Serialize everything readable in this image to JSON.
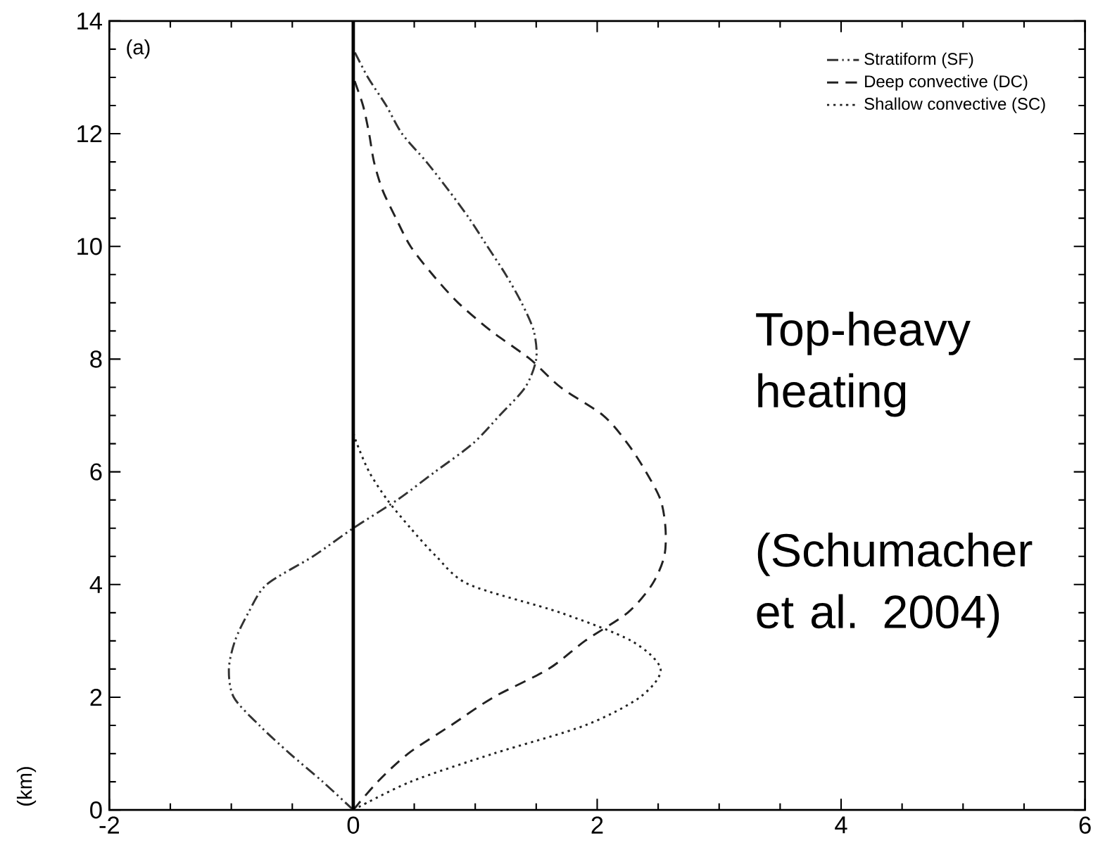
{
  "chart_data": {
    "type": "line",
    "ylabel": "(km)",
    "xlim": [
      -2,
      6
    ],
    "ylim": [
      0,
      14
    ],
    "xticks": [
      -2,
      0,
      2,
      4,
      6
    ],
    "yticks": [
      0,
      2,
      4,
      6,
      8,
      10,
      12,
      14
    ],
    "legend": "top right",
    "grid": false,
    "marker": "none",
    "ref_lines": [
      {
        "axis": "x",
        "value": 0,
        "color": "#000000",
        "line_style": "solid"
      }
    ],
    "annotations": [
      "(a)",
      "Top-heavy heating",
      "(Schumacher et al. 2004)"
    ],
    "series": [
      {
        "name": "Stratiform (SF)",
        "color": "#333333",
        "line_style": "dashdotdotted",
        "x": [
          0,
          -0.25,
          -0.52,
          -0.77,
          -0.98,
          -1.02,
          -0.97,
          -0.86,
          -0.71,
          -0.33,
          0,
          0.36,
          0.67,
          0.98,
          1.2,
          1.41,
          1.5,
          1.48,
          1.38,
          1.25,
          1.1,
          0.95,
          0.78,
          0.6,
          0.4,
          0.27,
          0.12,
          0
        ],
        "values": [
          0,
          0.5,
          1,
          1.5,
          2,
          2.5,
          3,
          3.5,
          4,
          4.5,
          5,
          5.5,
          6,
          6.5,
          7,
          7.5,
          8,
          8.5,
          9,
          9.5,
          10,
          10.5,
          11,
          11.5,
          12,
          12.5,
          13,
          13.5
        ]
      },
      {
        "name": "Deep convective (DC)",
        "color": "#222222",
        "line_style": "dashed",
        "x": [
          0,
          0.2,
          0.45,
          0.8,
          1.15,
          1.6,
          1.9,
          2.25,
          2.45,
          2.55,
          2.56,
          2.52,
          2.4,
          2.25,
          2.05,
          1.7,
          1.45,
          1.13,
          0.86,
          0.65,
          0.47,
          0.35,
          0.24,
          0.17,
          0.13,
          0.08,
          0
        ],
        "values": [
          0,
          0.5,
          1,
          1.5,
          2,
          2.5,
          3,
          3.5,
          4,
          4.5,
          5,
          5.5,
          6,
          6.5,
          7,
          7.5,
          8,
          8.5,
          9,
          9.5,
          10,
          10.5,
          11,
          11.5,
          12,
          12.5,
          13
        ]
      },
      {
        "name": "Shallow convective (SC)",
        "color": "#222222",
        "line_style": "dotted",
        "x": [
          0,
          0.47,
          1.15,
          1.9,
          2.35,
          2.52,
          2.28,
          1.7,
          0.95,
          0.68,
          0.47,
          0.28,
          0.13,
          0.03,
          0
        ],
        "values": [
          0,
          0.5,
          1,
          1.5,
          2,
          2.5,
          3,
          3.5,
          4,
          4.5,
          5,
          5.5,
          6,
          6.5,
          6.7
        ]
      }
    ]
  }
}
